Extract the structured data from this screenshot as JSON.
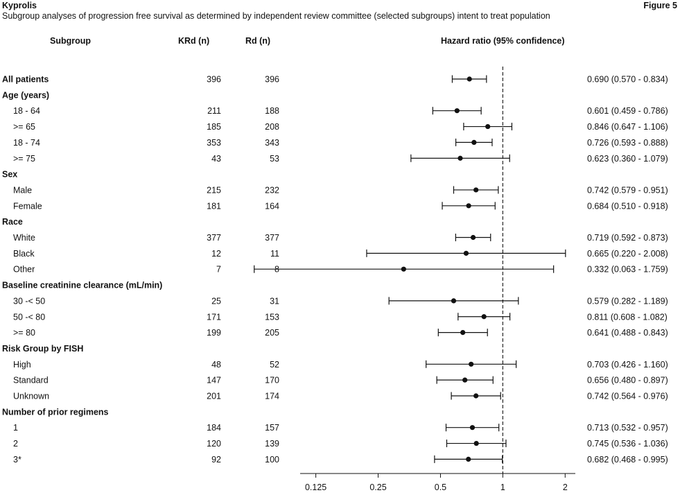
{
  "header": {
    "brand": "Kyprolis",
    "figure_label": "Figure 5",
    "subtitle": "Subgroup analyses of progression free survival as determined by independent review committee (selected subgroups) intent to treat population"
  },
  "columns": {
    "subgroup": "Subgroup",
    "krd": "KRd (n)",
    "rd": "Rd (n)",
    "hazard_ratio": "Hazard ratio (95% confidence)"
  },
  "chart_data": {
    "type": "forest",
    "x_scale": "log2",
    "xlim": [
      0.105,
      2.24
    ],
    "x_ticks": [
      0.125,
      0.25,
      0.5,
      1,
      2
    ],
    "x_tick_labels": [
      "0.125",
      "0.25",
      "0.5",
      "1",
      "2"
    ],
    "reference_line": 1,
    "rows": [
      {
        "label": "All patients",
        "bold": true,
        "krd": "396",
        "rd": "396",
        "hr": 0.69,
        "lo": 0.57,
        "hi": 0.834,
        "text": "0.690 (0.570 - 0.834)"
      },
      {
        "label": "Age (years)",
        "heading": true
      },
      {
        "label": "18 - 64",
        "krd": "211",
        "rd": "188",
        "hr": 0.601,
        "lo": 0.459,
        "hi": 0.786,
        "text": "0.601 (0.459 - 0.786)"
      },
      {
        "label": ">= 65",
        "krd": "185",
        "rd": "208",
        "hr": 0.846,
        "lo": 0.647,
        "hi": 1.106,
        "text": "0.846 (0.647 - 1.106)"
      },
      {
        "label": "18 - 74",
        "krd": "353",
        "rd": "343",
        "hr": 0.726,
        "lo": 0.593,
        "hi": 0.888,
        "text": "0.726 (0.593 - 0.888)"
      },
      {
        "label": ">= 75",
        "krd": "43",
        "rd": "53",
        "hr": 0.623,
        "lo": 0.36,
        "hi": 1.079,
        "text": "0.623 (0.360 - 1.079)"
      },
      {
        "label": "Sex",
        "heading": true
      },
      {
        "label": "Male",
        "krd": "215",
        "rd": "232",
        "hr": 0.742,
        "lo": 0.579,
        "hi": 0.951,
        "text": "0.742 (0.579 - 0.951)"
      },
      {
        "label": "Female",
        "krd": "181",
        "rd": "164",
        "hr": 0.684,
        "lo": 0.51,
        "hi": 0.918,
        "text": "0.684 (0.510 - 0.918)"
      },
      {
        "label": "Race",
        "heading": true
      },
      {
        "label": "White",
        "krd": "377",
        "rd": "377",
        "hr": 0.719,
        "lo": 0.592,
        "hi": 0.873,
        "text": "0.719 (0.592 - 0.873)"
      },
      {
        "label": "Black",
        "krd": "12",
        "rd": "11",
        "hr": 0.665,
        "lo": 0.22,
        "hi": 2.008,
        "text": "0.665 (0.220 - 2.008)"
      },
      {
        "label": "Other",
        "krd": "7",
        "rd": "8",
        "hr": 0.332,
        "lo": 0.063,
        "hi": 1.759,
        "text": "0.332 (0.063 - 1.759)"
      },
      {
        "label": "Baseline creatinine clearance (mL/min)",
        "heading": true
      },
      {
        "label": "30 -< 50",
        "krd": "25",
        "rd": "31",
        "hr": 0.579,
        "lo": 0.282,
        "hi": 1.189,
        "text": "0.579 (0.282 - 1.189)"
      },
      {
        "label": "50 -< 80",
        "krd": "171",
        "rd": "153",
        "hr": 0.811,
        "lo": 0.608,
        "hi": 1.082,
        "text": "0.811 (0.608 - 1.082)"
      },
      {
        "label": ">= 80",
        "krd": "199",
        "rd": "205",
        "hr": 0.641,
        "lo": 0.488,
        "hi": 0.843,
        "text": "0.641 (0.488 - 0.843)"
      },
      {
        "label": "Risk Group by FISH",
        "heading": true
      },
      {
        "label": "High",
        "krd": "48",
        "rd": "52",
        "hr": 0.703,
        "lo": 0.426,
        "hi": 1.16,
        "text": "0.703 (0.426 - 1.160)"
      },
      {
        "label": "Standard",
        "krd": "147",
        "rd": "170",
        "hr": 0.656,
        "lo": 0.48,
        "hi": 0.897,
        "text": "0.656 (0.480 - 0.897)"
      },
      {
        "label": "Unknown",
        "krd": "201",
        "rd": "174",
        "hr": 0.742,
        "lo": 0.564,
        "hi": 0.976,
        "text": "0.742 (0.564 - 0.976)"
      },
      {
        "label": "Number of prior regimens",
        "heading": true
      },
      {
        "label": "1",
        "krd": "184",
        "rd": "157",
        "hr": 0.713,
        "lo": 0.532,
        "hi": 0.957,
        "text": "0.713 (0.532 - 0.957)"
      },
      {
        "label": "2",
        "krd": "120",
        "rd": "139",
        "hr": 0.745,
        "lo": 0.536,
        "hi": 1.036,
        "text": "0.745 (0.536 - 1.036)"
      },
      {
        "label": "3*",
        "krd": "92",
        "rd": "100",
        "hr": 0.682,
        "lo": 0.468,
        "hi": 0.995,
        "text": "0.682 (0.468 - 0.995)"
      }
    ]
  }
}
